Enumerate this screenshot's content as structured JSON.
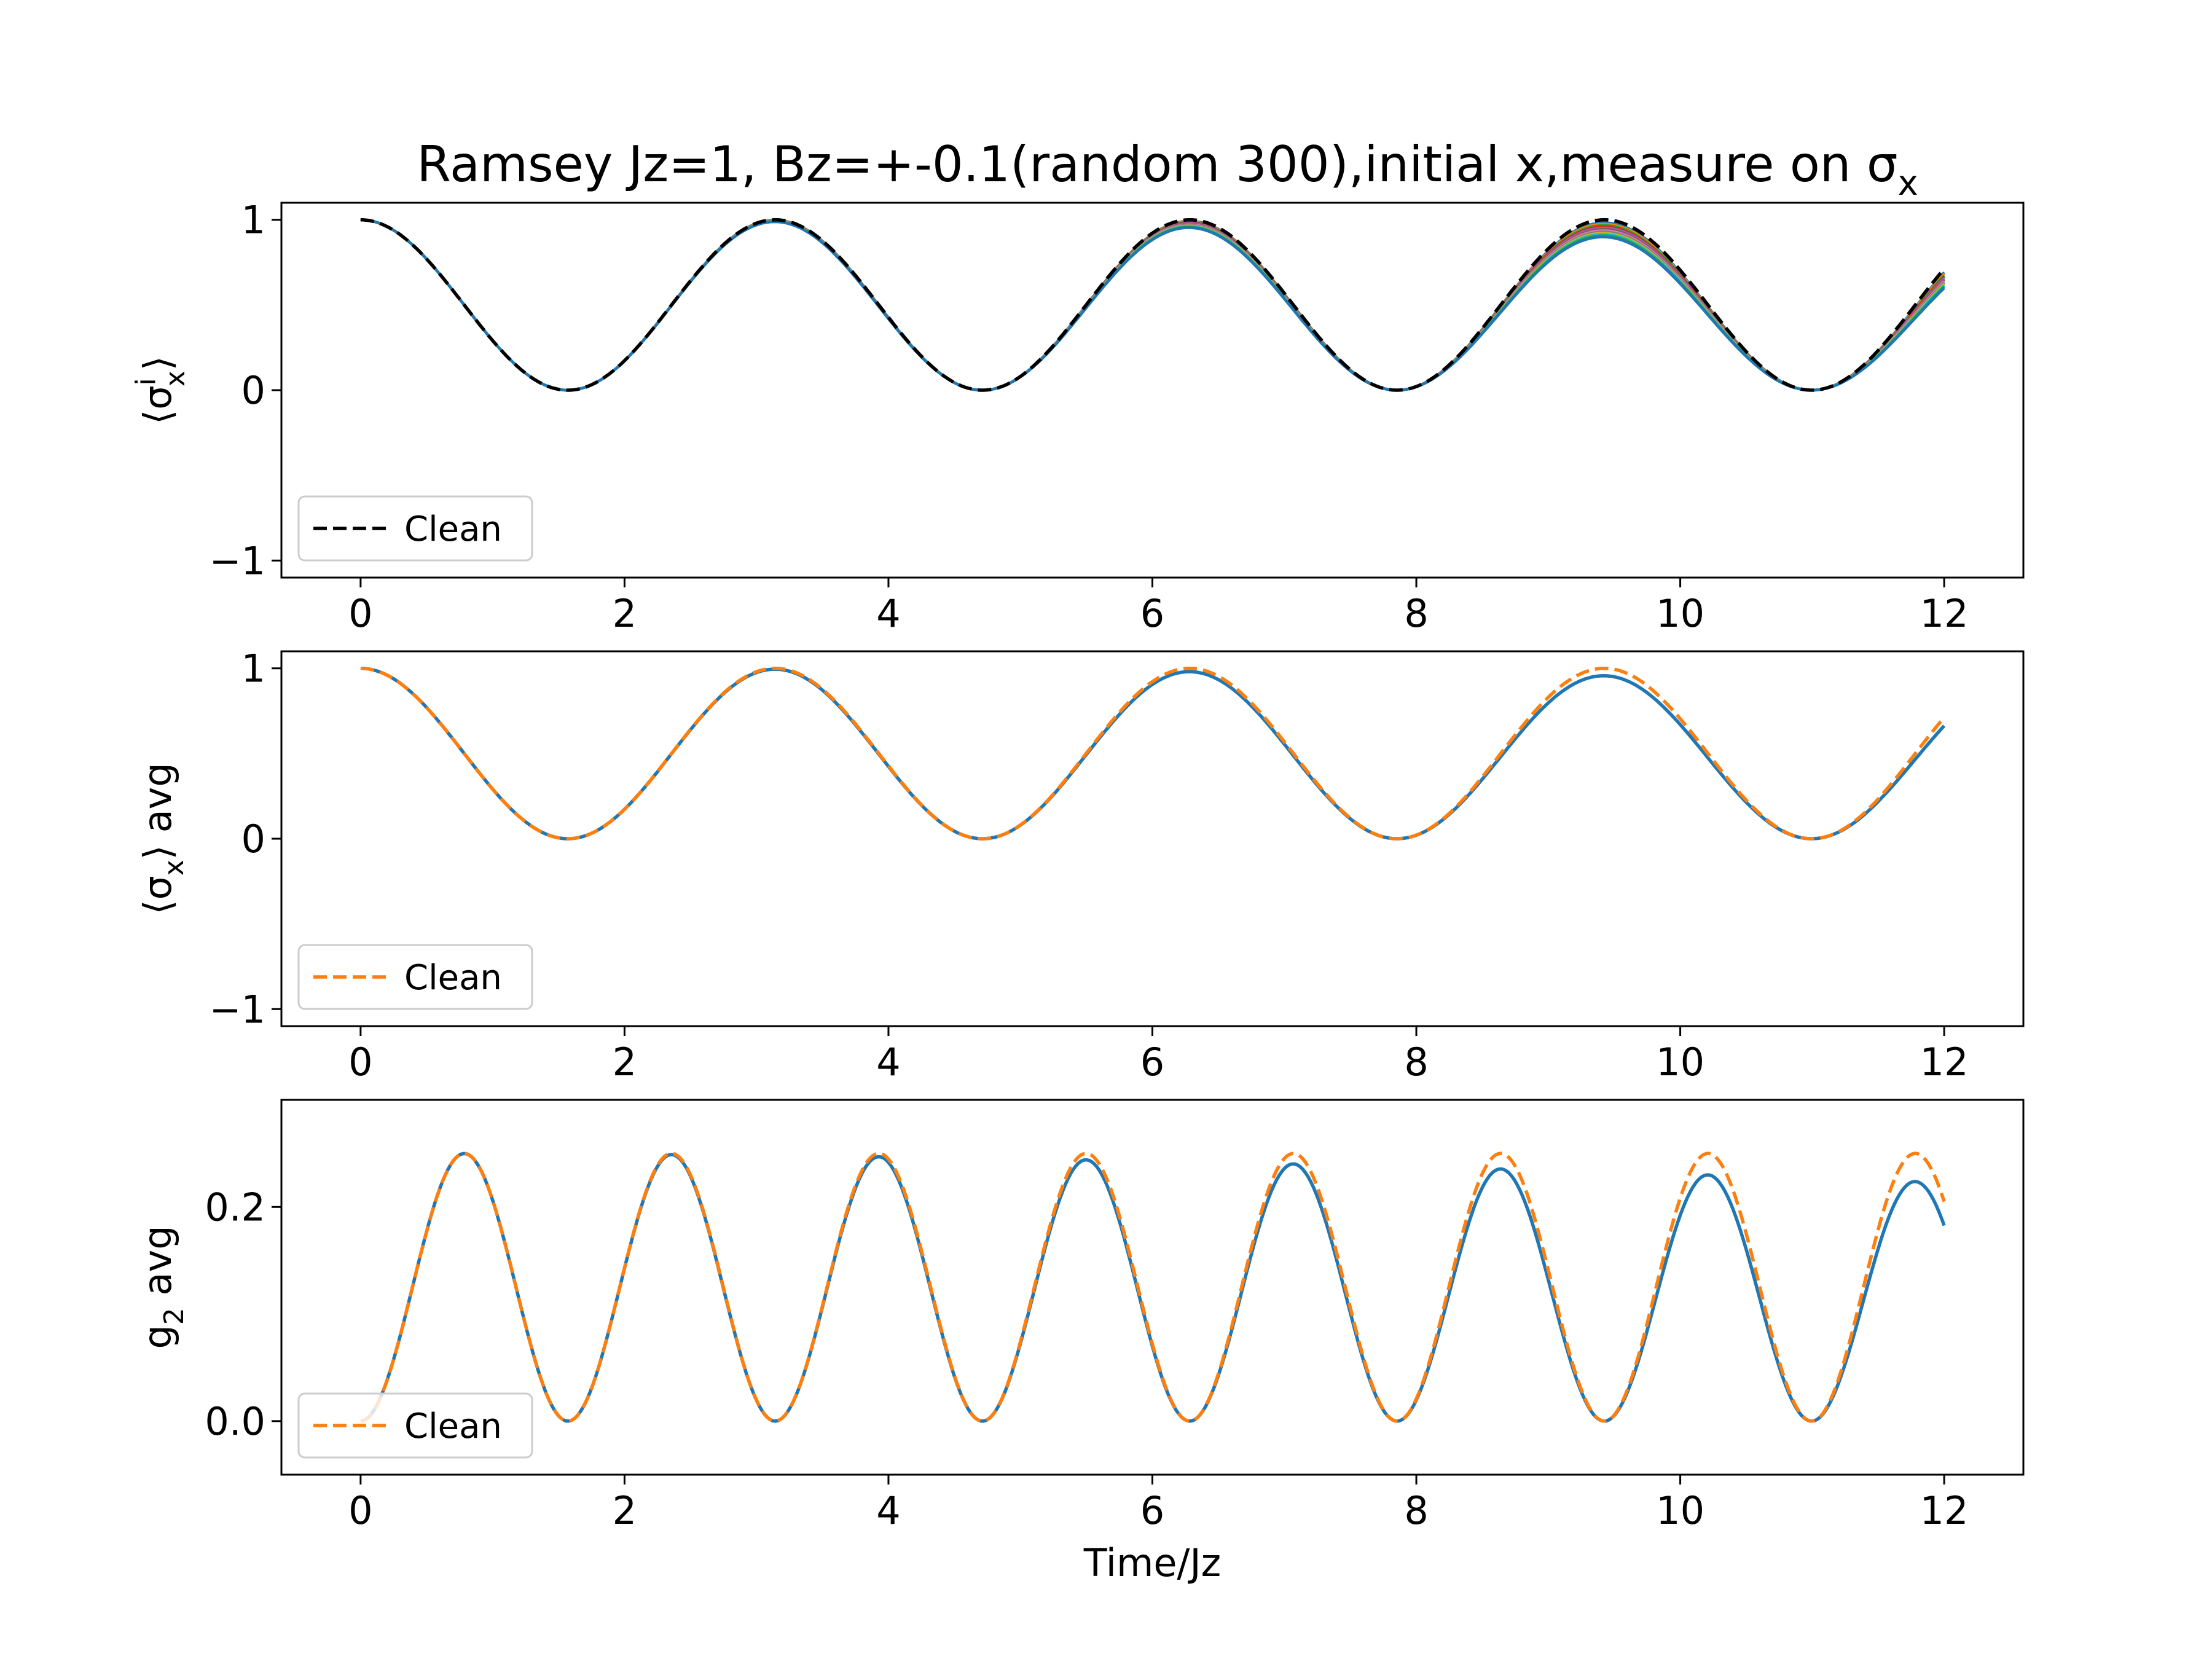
{
  "chart_data": [
    {
      "type": "line",
      "panel": "top",
      "title": "Ramsey Jz=1, Bz=+-0.1(random 300),initial x,measure on σ",
      "title_subscript": "x",
      "ylabel": "⟨σ",
      "ylabel_sub": "x",
      "ylabel_sup": "i",
      "ylabel_tail": "⟩",
      "xlabel": "",
      "xlim": [
        -0.6,
        12.6
      ],
      "ylim": [
        -1.1,
        1.1
      ],
      "xticks": [
        "0",
        "2",
        "4",
        "6",
        "8",
        "10",
        "12"
      ],
      "yticks": [
        "−1",
        "0",
        "1"
      ],
      "ytick_values": [
        -1,
        0,
        1
      ],
      "grid": false,
      "legend_placement": "lower-left",
      "legend": [
        {
          "label": "Clean",
          "style": "dashed",
          "color": "#000000"
        }
      ],
      "series": [
        {
          "role": "ensemble",
          "form": "cos2",
          "t_range": [
            0,
            12
          ],
          "damping_range": [
            0.0002,
            0.0012
          ],
          "count": 12,
          "colors": [
            "#1f77b4",
            "#ff7f0e",
            "#2ca02c",
            "#d62728",
            "#9467bd",
            "#8c564b",
            "#e377c2",
            "#7f7f7f",
            "#bcbd22",
            "#17becf",
            "#2ca02c",
            "#1f77b4"
          ]
        },
        {
          "role": "clean",
          "form": "cos2",
          "t_range": [
            0,
            12
          ],
          "damping": 0,
          "color": "#000000",
          "style": "dashed"
        }
      ]
    },
    {
      "type": "line",
      "panel": "middle",
      "ylabel": "⟨σ",
      "ylabel_sub": "x",
      "ylabel_sup": "",
      "ylabel_tail": "⟩ avg",
      "xlabel": "",
      "xlim": [
        -0.6,
        12.6
      ],
      "ylim": [
        -1.1,
        1.1
      ],
      "xticks": [
        "0",
        "2",
        "4",
        "6",
        "8",
        "10",
        "12"
      ],
      "yticks": [
        "−1",
        "0",
        "1"
      ],
      "ytick_values": [
        -1,
        0,
        1
      ],
      "grid": false,
      "legend_placement": "lower-left",
      "legend": [
        {
          "label": "Clean",
          "style": "dashed",
          "color": "#ff7f0e"
        }
      ],
      "series": [
        {
          "role": "average",
          "form": "cos2",
          "t_range": [
            0,
            12
          ],
          "damping": 0.0005,
          "color": "#1f77b4",
          "style": "solid"
        },
        {
          "role": "clean",
          "form": "cos2",
          "t_range": [
            0,
            12
          ],
          "damping": 0,
          "color": "#ff7f0e",
          "style": "dashed"
        }
      ]
    },
    {
      "type": "line",
      "panel": "bottom",
      "ylabel": "g",
      "ylabel_sub": "2",
      "ylabel_sup": "",
      "ylabel_tail": " avg",
      "xlabel": "Time/Jz",
      "xlim": [
        -0.6,
        12.6
      ],
      "ylim": [
        -0.05,
        0.3
      ],
      "xticks": [
        "0",
        "2",
        "4",
        "6",
        "8",
        "10",
        "12"
      ],
      "yticks": [
        "0.0",
        "0.2"
      ],
      "ytick_values": [
        0,
        0.2
      ],
      "grid": false,
      "legend_placement": "lower-left",
      "legend": [
        {
          "label": "Clean",
          "style": "dashed",
          "color": "#ff7f0e"
        }
      ],
      "series": [
        {
          "role": "average",
          "form": "g2",
          "t_range": [
            0,
            12
          ],
          "damping": 0.0008,
          "color": "#1f77b4",
          "style": "solid"
        },
        {
          "role": "clean",
          "form": "g2",
          "t_range": [
            0,
            12
          ],
          "damping": 0,
          "color": "#ff7f0e",
          "style": "dashed"
        }
      ]
    }
  ]
}
